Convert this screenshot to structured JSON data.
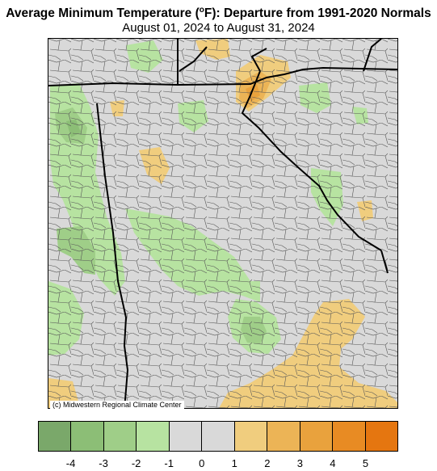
{
  "title_main": "Average Minimum Temperature (",
  "title_sup": "o",
  "title_rest": "F): Departure from 1991-2020 Normals",
  "subtitle": "August 01, 2024 to August 31, 2024",
  "credit": "(c) Midwestern Regional Climate Center",
  "legend": {
    "bins": [
      {
        "range": "-5 to -4",
        "color": "#7aa86a"
      },
      {
        "range": "-4 to -3",
        "color": "#8cbe76"
      },
      {
        "range": "-3 to -2",
        "color": "#9fce88"
      },
      {
        "range": "-2 to -1",
        "color": "#b7e3a1"
      },
      {
        "range": "-1 to 0",
        "color": "#d9d9d9"
      },
      {
        "range": "0 to 1",
        "color": "#d9d9d9"
      },
      {
        "range": "1 to 2",
        "color": "#f0cd7e"
      },
      {
        "range": "2 to 3",
        "color": "#ecb456"
      },
      {
        "range": "3 to 4",
        "color": "#e9a23d"
      },
      {
        "range": "4 to 5",
        "color": "#e88b23"
      },
      {
        "range": "5+",
        "color": "#e57610"
      }
    ],
    "ticks": [
      "-4",
      "-3",
      "-2",
      "-1",
      "0",
      "1",
      "2",
      "3",
      "4",
      "5"
    ]
  },
  "colors": {
    "background": "#d9d9d9",
    "county_lines": "#444444",
    "state_lines": "#000000"
  }
}
